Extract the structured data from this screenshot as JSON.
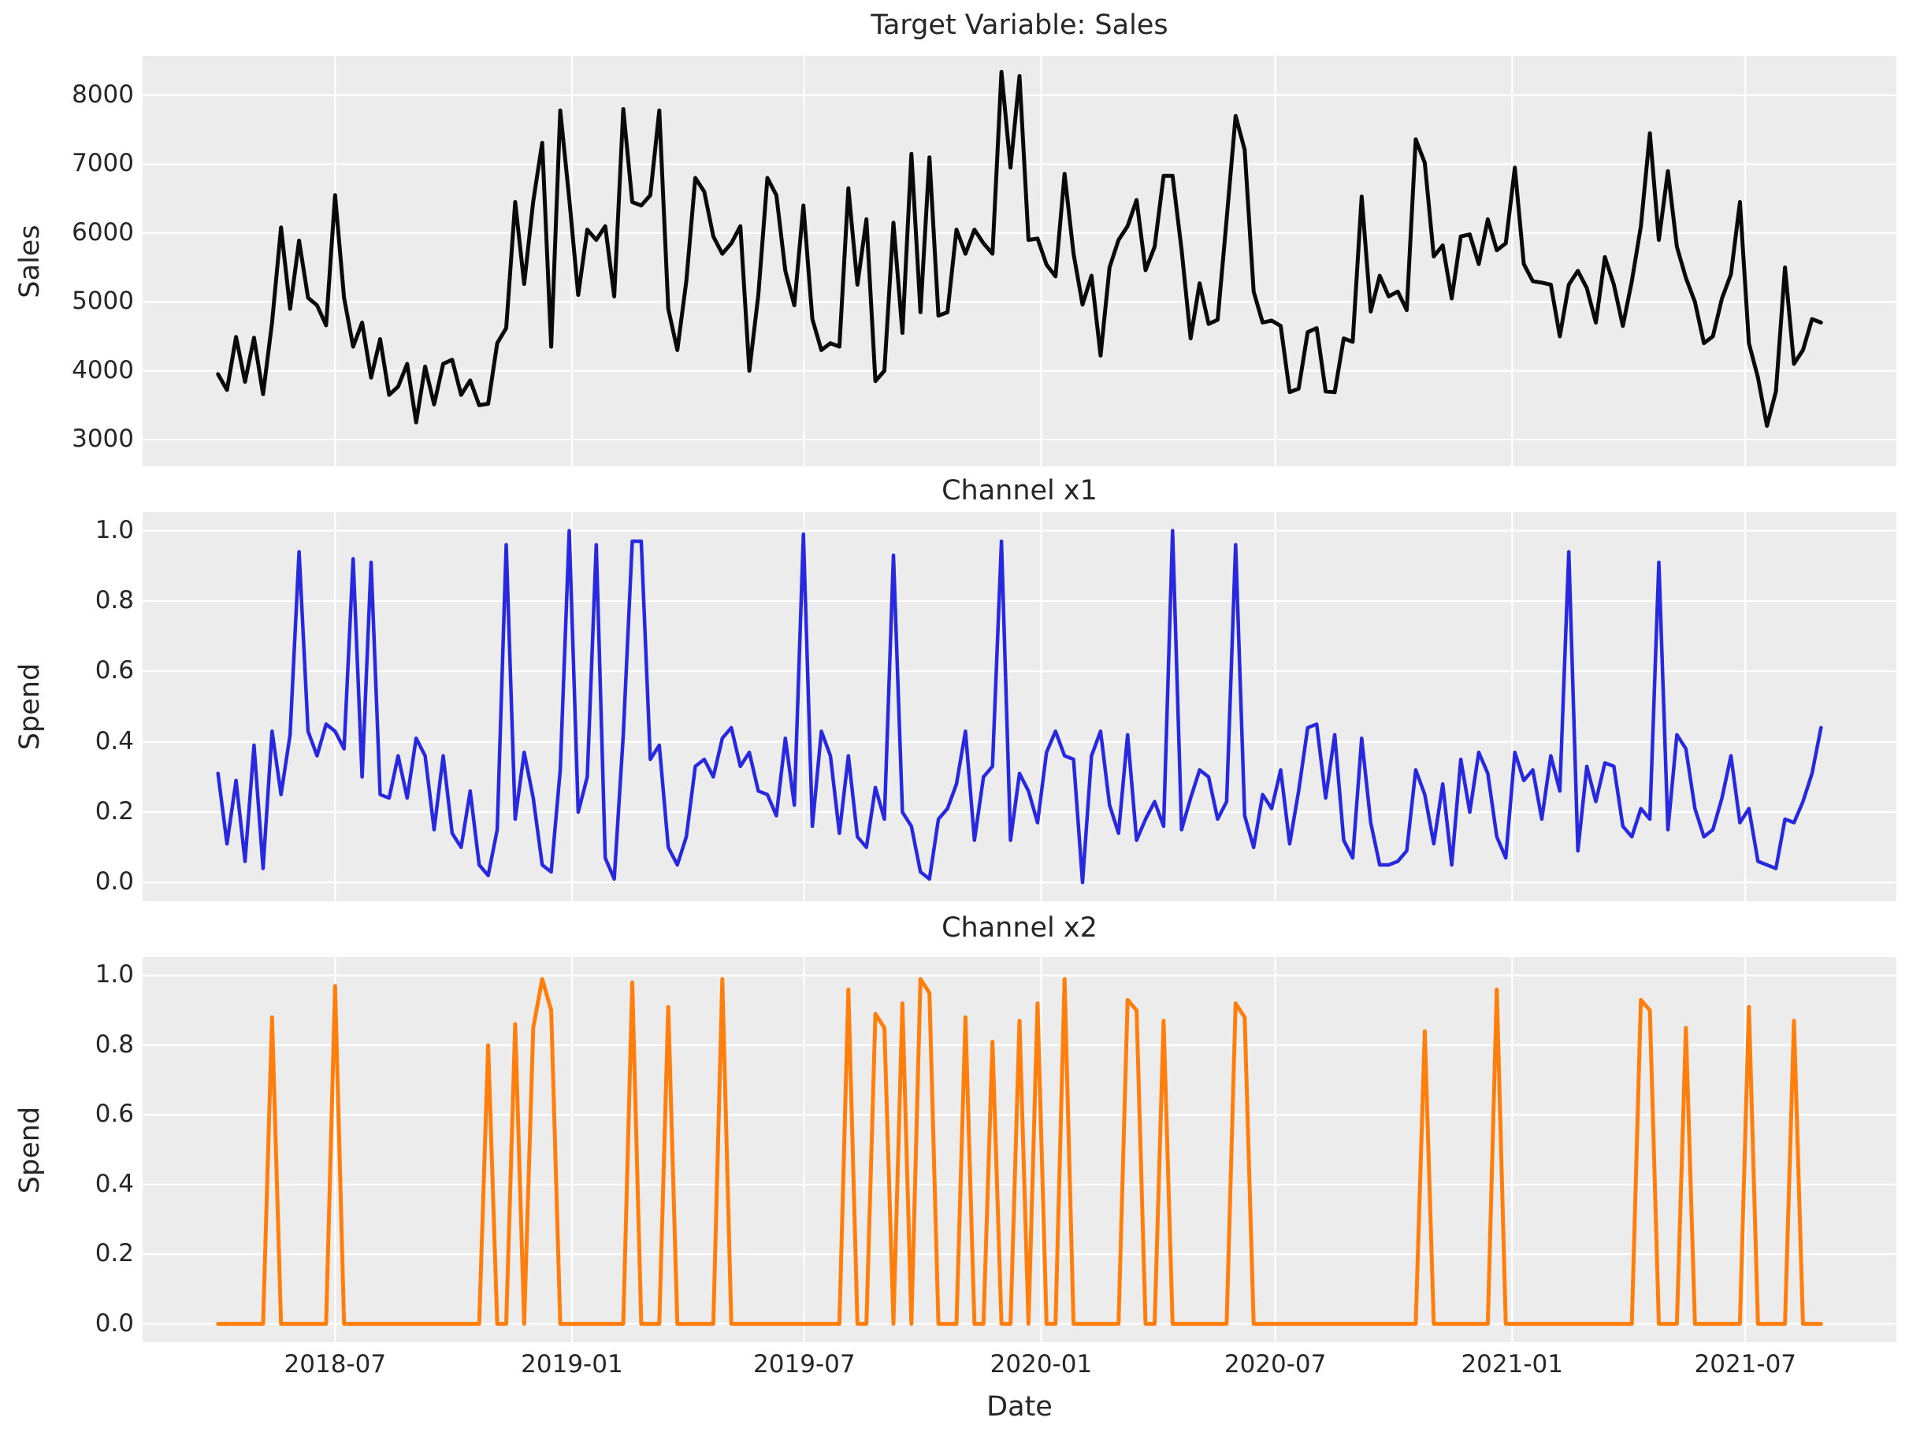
{
  "figure": {
    "background": "#ffffff",
    "panel_background": "#ececec",
    "grid_color": "#ffffff",
    "text_color": "#262626"
  },
  "x_axis": {
    "label": "Date",
    "n_points": 179,
    "start_date": "2018-04-01",
    "step_days": 7,
    "ticks": [
      {
        "pos": 13.0,
        "label": "2018-07"
      },
      {
        "pos": 39.3,
        "label": "2019-01"
      },
      {
        "pos": 65.1,
        "label": "2019-07"
      },
      {
        "pos": 91.4,
        "label": "2020-01"
      },
      {
        "pos": 117.4,
        "label": "2020-07"
      },
      {
        "pos": 143.7,
        "label": "2021-01"
      },
      {
        "pos": 169.6,
        "label": "2021-07"
      }
    ]
  },
  "chart_data": [
    {
      "type": "line",
      "title": "Target Variable: Sales",
      "ylabel": "Sales",
      "color": "#0a0a0a",
      "line_width": 5,
      "ylim": [
        2612,
        8572
      ],
      "yticks": [
        3000,
        4000,
        5000,
        6000,
        7000,
        8000
      ],
      "ytick_decimals": 0,
      "values": [
        3950,
        3720,
        4490,
        3840,
        4480,
        3660,
        4700,
        6080,
        4900,
        5890,
        5060,
        4950,
        4660,
        6550,
        5060,
        4350,
        4700,
        3900,
        4460,
        3650,
        3770,
        4100,
        3250,
        4060,
        3510,
        4100,
        4160,
        3650,
        3860,
        3500,
        3520,
        4400,
        4620,
        6450,
        5260,
        6460,
        7310,
        4350,
        7780,
        6500,
        5100,
        6050,
        5900,
        6100,
        5080,
        7800,
        6450,
        6400,
        6550,
        7780,
        4900,
        4300,
        5300,
        6800,
        6600,
        5950,
        5700,
        5850,
        6100,
        4000,
        5100,
        6800,
        6550,
        5450,
        4950,
        6400,
        4750,
        4300,
        4400,
        4350,
        6650,
        5250,
        6200,
        3850,
        4000,
        6150,
        4550,
        7150,
        4850,
        7100,
        4800,
        4850,
        6050,
        5700,
        6050,
        5850,
        5700,
        8340,
        6950,
        8280,
        5900,
        5920,
        5540,
        5370,
        6860,
        5700,
        4960,
        5380,
        4220,
        5500,
        5900,
        6100,
        6480,
        5460,
        5800,
        6830,
        6830,
        5760,
        4470,
        5270,
        4680,
        4740,
        6200,
        7700,
        7210,
        5150,
        4700,
        4730,
        4650,
        3690,
        3740,
        4560,
        4620,
        3700,
        3690,
        4470,
        4420,
        6530,
        4860,
        5380,
        5080,
        5150,
        4880,
        7360,
        7020,
        5660,
        5820,
        5050,
        5950,
        5980,
        5550,
        6200,
        5750,
        5850,
        6950,
        5550,
        5300,
        5280,
        5250,
        4500,
        5250,
        5450,
        5200,
        4700,
        5650,
        5250,
        4650,
        5300,
        6100,
        7450,
        5900,
        6900,
        5800,
        5350,
        5000,
        4400,
        4500,
        5050,
        5400,
        6450,
        4400,
        3900,
        3200,
        3700,
        5500,
        4100,
        4300,
        4750,
        4700
      ]
    },
    {
      "type": "line",
      "title": "Channel x1",
      "ylabel": "Spend",
      "color": "#2828df",
      "line_width": 4.5,
      "ylim": [
        -0.053,
        1.053
      ],
      "yticks": [
        0.0,
        0.2,
        0.4,
        0.6,
        0.8,
        1.0
      ],
      "ytick_decimals": 1,
      "values": [
        0.31,
        0.11,
        0.29,
        0.06,
        0.39,
        0.04,
        0.43,
        0.25,
        0.42,
        0.94,
        0.43,
        0.36,
        0.45,
        0.43,
        0.38,
        0.92,
        0.3,
        0.91,
        0.25,
        0.24,
        0.36,
        0.24,
        0.41,
        0.36,
        0.15,
        0.36,
        0.14,
        0.1,
        0.26,
        0.05,
        0.02,
        0.15,
        0.96,
        0.18,
        0.37,
        0.24,
        0.05,
        0.03,
        0.32,
        1.0,
        0.2,
        0.3,
        0.96,
        0.07,
        0.01,
        0.42,
        0.97,
        0.97,
        0.35,
        0.39,
        0.1,
        0.05,
        0.13,
        0.33,
        0.35,
        0.3,
        0.41,
        0.44,
        0.33,
        0.37,
        0.26,
        0.25,
        0.19,
        0.41,
        0.22,
        0.99,
        0.16,
        0.43,
        0.36,
        0.14,
        0.36,
        0.13,
        0.1,
        0.27,
        0.18,
        0.93,
        0.2,
        0.16,
        0.03,
        0.01,
        0.18,
        0.21,
        0.28,
        0.43,
        0.12,
        0.3,
        0.33,
        0.97,
        0.12,
        0.31,
        0.26,
        0.17,
        0.37,
        0.43,
        0.36,
        0.35,
        0.0,
        0.36,
        0.43,
        0.22,
        0.14,
        0.42,
        0.12,
        0.18,
        0.23,
        0.16,
        1.0,
        0.15,
        0.24,
        0.32,
        0.3,
        0.18,
        0.23,
        0.96,
        0.19,
        0.1,
        0.25,
        0.21,
        0.32,
        0.11,
        0.26,
        0.44,
        0.45,
        0.24,
        0.42,
        0.12,
        0.07,
        0.41,
        0.17,
        0.05,
        0.05,
        0.06,
        0.09,
        0.32,
        0.25,
        0.11,
        0.28,
        0.05,
        0.35,
        0.2,
        0.37,
        0.31,
        0.13,
        0.07,
        0.37,
        0.29,
        0.32,
        0.18,
        0.36,
        0.26,
        0.94,
        0.09,
        0.33,
        0.23,
        0.34,
        0.33,
        0.16,
        0.13,
        0.21,
        0.18,
        0.91,
        0.15,
        0.42,
        0.38,
        0.21,
        0.13,
        0.15,
        0.24,
        0.36,
        0.17,
        0.21,
        0.06,
        0.05,
        0.04,
        0.18,
        0.17,
        0.23,
        0.31,
        0.44
      ]
    },
    {
      "type": "line",
      "title": "Channel x2",
      "ylabel": "Spend",
      "color": "#ff7f0e",
      "line_width": 5,
      "ylim": [
        -0.053,
        1.053
      ],
      "yticks": [
        0.0,
        0.2,
        0.4,
        0.6,
        0.8,
        1.0
      ],
      "ytick_decimals": 1,
      "values": [
        0,
        0,
        0,
        0,
        0,
        0,
        0.88,
        0,
        0,
        0,
        0,
        0,
        0,
        0.97,
        0,
        0,
        0,
        0,
        0,
        0,
        0,
        0,
        0,
        0,
        0,
        0,
        0,
        0,
        0,
        0,
        0.8,
        0,
        0,
        0.86,
        0,
        0.85,
        0.99,
        0.9,
        0,
        0,
        0,
        0,
        0,
        0,
        0,
        0,
        0.98,
        0,
        0,
        0,
        0.91,
        0,
        0,
        0,
        0,
        0,
        0.99,
        0,
        0,
        0,
        0,
        0,
        0,
        0,
        0,
        0,
        0,
        0,
        0,
        0,
        0.96,
        0,
        0,
        0.89,
        0.85,
        0,
        0.92,
        0,
        0.99,
        0.95,
        0,
        0,
        0,
        0.88,
        0,
        0,
        0.81,
        0,
        0,
        0.87,
        0,
        0.92,
        0,
        0,
        0.99,
        0,
        0,
        0,
        0,
        0,
        0,
        0.93,
        0.9,
        0,
        0,
        0.87,
        0,
        0,
        0,
        0,
        0,
        0,
        0,
        0.92,
        0.88,
        0,
        0,
        0,
        0,
        0,
        0,
        0,
        0,
        0,
        0,
        0,
        0,
        0,
        0,
        0,
        0,
        0,
        0,
        0,
        0.84,
        0,
        0,
        0,
        0,
        0,
        0,
        0,
        0.96,
        0,
        0,
        0,
        0,
        0,
        0,
        0,
        0,
        0,
        0,
        0,
        0,
        0,
        0,
        0,
        0.93,
        0.9,
        0,
        0,
        0,
        0.85,
        0,
        0,
        0,
        0,
        0,
        0,
        0.91,
        0,
        0,
        0,
        0,
        0.87,
        0,
        0,
        0
      ]
    }
  ]
}
